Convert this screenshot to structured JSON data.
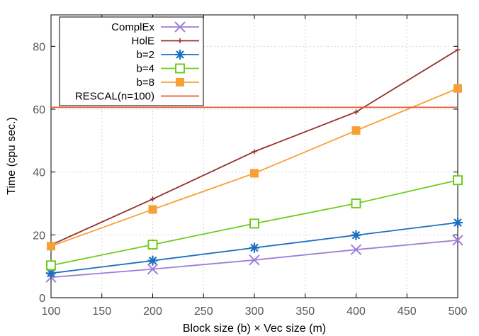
{
  "chart_data": {
    "type": "line",
    "title": "",
    "xlabel": "Block size (b) × Vec size (m)",
    "ylabel": "Time (cpu sec.)",
    "xlim": [
      100,
      500
    ],
    "ylim": [
      0,
      90
    ],
    "xticks": [
      100,
      150,
      200,
      250,
      300,
      350,
      400,
      450,
      500
    ],
    "yticks": [
      0,
      20,
      40,
      60,
      80
    ],
    "grid": true,
    "legend_position": "top-left",
    "series": [
      {
        "name": "ComplEx",
        "color": "#9f7fd6",
        "marker": "x",
        "x": [
          100,
          200,
          300,
          400,
          500
        ],
        "y": [
          6.5,
          9.1,
          12.0,
          15.3,
          18.3
        ]
      },
      {
        "name": "HolE",
        "color": "#94302b",
        "marker": "plus",
        "x": [
          100,
          200,
          300,
          400,
          500
        ],
        "y": [
          16.8,
          31.4,
          46.5,
          59.1,
          78.9
        ]
      },
      {
        "name": "b=2",
        "color": "#1a6fc0",
        "marker": "star",
        "x": [
          100,
          200,
          300,
          400,
          500
        ],
        "y": [
          7.8,
          11.8,
          15.9,
          19.9,
          23.9
        ]
      },
      {
        "name": "b=4",
        "color": "#6fcc1c",
        "marker": "open-square",
        "x": [
          100,
          200,
          300,
          400,
          500
        ],
        "y": [
          10.3,
          16.9,
          23.6,
          30.0,
          37.4
        ]
      },
      {
        "name": "b=8",
        "color": "#f7a037",
        "marker": "filled-square",
        "x": [
          100,
          200,
          300,
          400,
          500
        ],
        "y": [
          16.4,
          28.1,
          39.6,
          53.2,
          66.6
        ]
      },
      {
        "name": "RESCAL(n=100)",
        "color": "#e8592f",
        "marker": "none",
        "x": [
          100,
          500
        ],
        "y": [
          60.6,
          60.6
        ]
      }
    ]
  }
}
